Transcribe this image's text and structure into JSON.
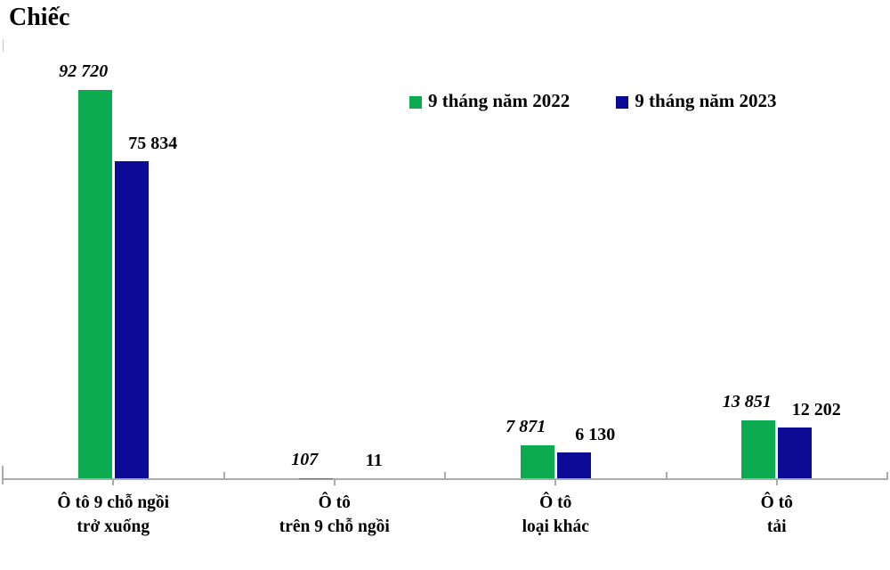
{
  "chart_data": {
    "type": "bar",
    "title": "Chiếc",
    "ylabel": "Chiếc",
    "xlabel": "",
    "grid": false,
    "legend_position": "top-center",
    "axis_color": "#ABABAB",
    "ylim": [
      0,
      100000
    ],
    "categories": [
      {
        "lines": [
          "Ô tô 9 chỗ ngồi",
          "trở xuống"
        ]
      },
      {
        "lines": [
          "Ô tô",
          "trên 9 chỗ ngồi"
        ]
      },
      {
        "lines": [
          "Ô tô",
          "loại khác"
        ]
      },
      {
        "lines": [
          "Ô tô",
          "tải"
        ]
      }
    ],
    "series": [
      {
        "name": "9 tháng năm 2022",
        "color": "#0CAB50",
        "values": [
          92720,
          107,
          7871,
          13851
        ],
        "labels": [
          "92 720",
          "107",
          "7 871",
          "13 851"
        ],
        "label_style": "italic"
      },
      {
        "name": "9 tháng năm 2023",
        "color": "#0B0B96",
        "values": [
          75834,
          11,
          6130,
          12202
        ],
        "labels": [
          "75 834",
          "11",
          "6 130",
          "12 202"
        ],
        "label_style": "normal"
      }
    ]
  }
}
